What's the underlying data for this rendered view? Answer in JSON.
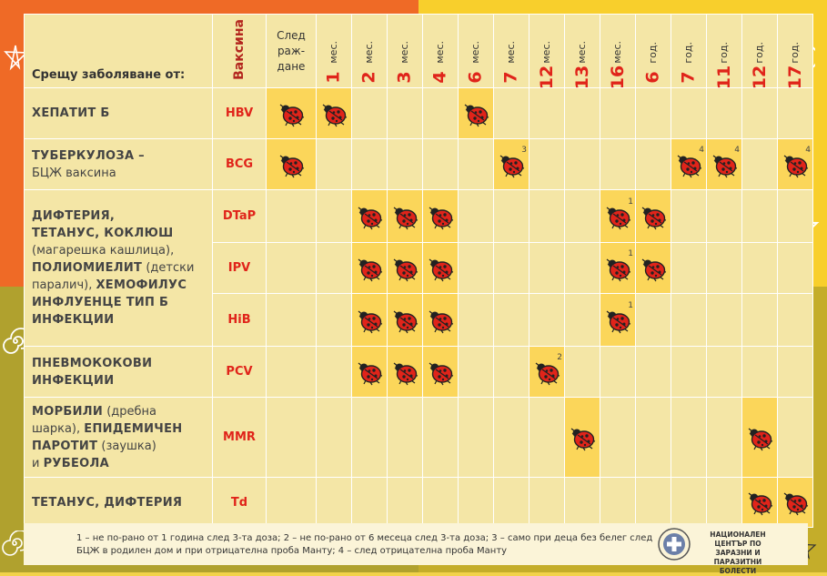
{
  "header": {
    "disease_col": "Срещу заболяване от:",
    "vaccine_col": "Ваксина",
    "birth_line1": "След",
    "birth_line2": "раж-",
    "birth_line3": "дане",
    "ages": [
      {
        "num": "1",
        "unit": "мес."
      },
      {
        "num": "2",
        "unit": "мес."
      },
      {
        "num": "3",
        "unit": "мес."
      },
      {
        "num": "4",
        "unit": "мес."
      },
      {
        "num": "6",
        "unit": "мес."
      },
      {
        "num": "7",
        "unit": "мес."
      },
      {
        "num": "12",
        "unit": "мес."
      },
      {
        "num": "13",
        "unit": "мес."
      },
      {
        "num": "16",
        "unit": "мес."
      },
      {
        "num": "6",
        "unit": "год."
      },
      {
        "num": "7",
        "unit": "год."
      },
      {
        "num": "11",
        "unit": "год."
      },
      {
        "num": "12",
        "unit": "год."
      },
      {
        "num": "17",
        "unit": "год."
      }
    ]
  },
  "diseases": [
    {
      "text": "<b>ХЕПАТИТ Б</b>"
    },
    {
      "text": "<b>ТУБЕРКУЛОЗА –</b><br>БЦЖ ваксина"
    },
    {
      "text": "<b>ДИФТЕРИЯ,<br>ТЕТАНУС, КОКЛЮШ</b><br>(магарешка кашлица),<br><b>ПОЛИОМИЕЛИТ</b> (детски<br>паралич), <b>ХЕМОФИЛУС<br>ИНФЛУЕНЦЕ ТИП Б<br>ИНФЕКЦИИ</b>"
    },
    {
      "text": "<b>ПНЕВМОКОКОВИ<br>ИНФЕКЦИИ</b>"
    },
    {
      "text": "<b>МОРБИЛИ</b> (дребна<br>шарка), <b>ЕПИДЕМИЧЕН<br>ПАРОТИТ</b> (заушка)<br>и <b>РУБЕОЛА</b>"
    },
    {
      "text": "<b>ТЕТАНУС, ДИФТЕРИЯ</b>"
    }
  ],
  "vaccines": [
    {
      "name": "HBV",
      "disease": 0,
      "doses": [
        0,
        1,
        5
      ],
      "notes": {}
    },
    {
      "name": "BCG",
      "disease": 1,
      "doses": [
        0,
        6,
        11,
        12,
        14
      ],
      "notes": {
        "6": "3",
        "11": "4",
        "12": "4",
        "14": "4"
      }
    },
    {
      "name": "DTaP",
      "disease": 2,
      "doses": [
        2,
        3,
        4,
        9,
        10
      ],
      "notes": {
        "9": "1"
      }
    },
    {
      "name": "IPV",
      "disease": 2,
      "doses": [
        2,
        3,
        4,
        9,
        10
      ],
      "notes": {
        "9": "1"
      }
    },
    {
      "name": "HiB",
      "disease": 2,
      "doses": [
        2,
        3,
        4,
        9
      ],
      "notes": {
        "9": "1"
      }
    },
    {
      "name": "PCV",
      "disease": 3,
      "doses": [
        2,
        3,
        4,
        7
      ],
      "notes": {
        "7": "2"
      }
    },
    {
      "name": "MMR",
      "disease": 4,
      "doses": [
        8,
        13
      ],
      "notes": {}
    },
    {
      "name": "Td",
      "disease": 5,
      "doses": [
        13,
        14
      ],
      "notes": {}
    }
  ],
  "footer": {
    "note": "1 – не по-рано от 1 година след 3-та доза; 2 – не по-рано от 6 месеца след 3-та доза; 3 – само при деца без белег след БЦЖ в родилен дом и при отрицателна проба Манту; 4 – след отрицателна проба Манту",
    "org": "НАЦИОНАЛЕН ЦЕНТЪР ПО ЗАРАЗНИ И ПАРАЗИТНИ БОЛЕСТИ"
  },
  "colors": {
    "accent_red": "#e0241a",
    "ladybug": "#e0241a",
    "cell_active": "#fbd65a",
    "cell": "#f4e6a6"
  },
  "icons": {
    "dose_marker": "ladybug-icon"
  }
}
